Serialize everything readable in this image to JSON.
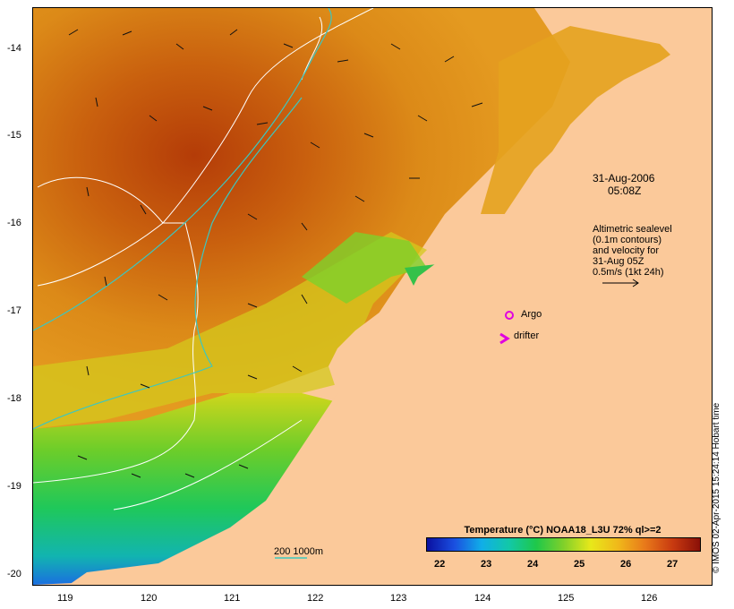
{
  "title": "",
  "annotation": {
    "date": "31-Aug-2006",
    "time": "05:08Z",
    "legend_lines": [
      "Altimetric sealevel",
      "(0.1m contours)",
      "and velocity for",
      "31-Aug 05Z",
      "0.5m/s (1kt 24h)"
    ]
  },
  "markers": {
    "argo_label": "Argo",
    "drifter_label": "drifter"
  },
  "depth_contours_label": "200  1000m",
  "credit": "© IMOS 02-Apr-2015 15:24:14 Hobart time",
  "colorbar": {
    "title": "Temperature (°C) NOAA18_L3U 72% ql>=2",
    "ticks": [
      "22",
      "23",
      "24",
      "25",
      "26",
      "27"
    ]
  },
  "axes": {
    "x_ticks": [
      "119",
      "120",
      "121",
      "122",
      "123",
      "124",
      "125",
      "126"
    ],
    "y_ticks": [
      "-14",
      "-15",
      "-16",
      "-17",
      "-18",
      "-19",
      "-20"
    ]
  },
  "colors": {
    "land": "#fbc99a",
    "contour": "#ffffff",
    "depth_contour": "#3cc7c0",
    "argo": "#e000e0",
    "drifter": "#e000e0"
  }
}
